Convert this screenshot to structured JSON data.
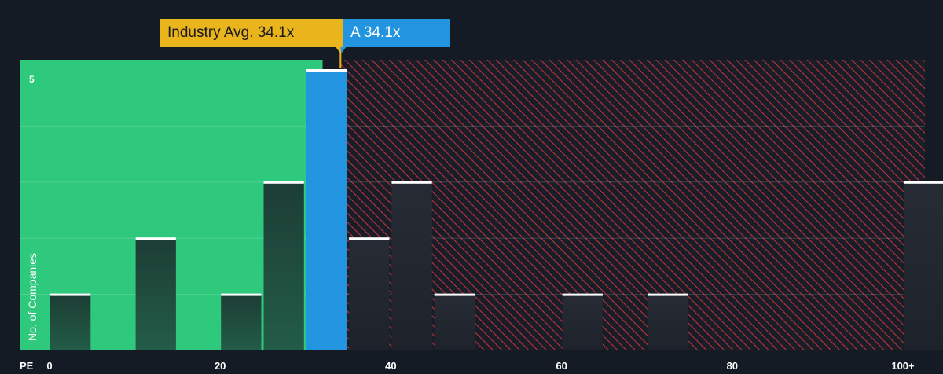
{
  "chart_data": {
    "type": "bar",
    "xlabel": "PE",
    "ylabel": "No. of Companies",
    "x_ticks": [
      "0",
      "20",
      "40",
      "60",
      "80",
      "100+"
    ],
    "y_ticks": [
      {
        "value": 5,
        "label": "5"
      }
    ],
    "ylim": [
      0,
      5
    ],
    "xlim": [
      -5,
      102
    ],
    "bin_width": 5,
    "bars": [
      {
        "x_start": 0,
        "value": 1
      },
      {
        "x_start": 10,
        "value": 2
      },
      {
        "x_start": 20,
        "value": 1
      },
      {
        "x_start": 25,
        "value": 3
      },
      {
        "x_start": 30,
        "value": 5,
        "highlight": true
      },
      {
        "x_start": 35,
        "value": 2
      },
      {
        "x_start": 40,
        "value": 3
      },
      {
        "x_start": 45,
        "value": 1
      },
      {
        "x_start": 60,
        "value": 1
      },
      {
        "x_start": 70,
        "value": 1
      },
      {
        "x_start": 100,
        "value": 3
      }
    ],
    "industry_avg": 34.1,
    "company_value": 34.1,
    "annotations": {
      "industry_label": "Industry Avg. 34.1x",
      "company_label": "A 34.1x"
    },
    "colors": {
      "background": "#151b24",
      "undervalued_zone": "#2fc97d",
      "overvalued_hatch": "#c0323a",
      "highlight_bar": "#2394df",
      "bar_dark": "#1f3b33",
      "cap": "#ffffff",
      "industry_callout": "#e9b41c",
      "company_callout": "#2394df"
    },
    "grid": true
  }
}
